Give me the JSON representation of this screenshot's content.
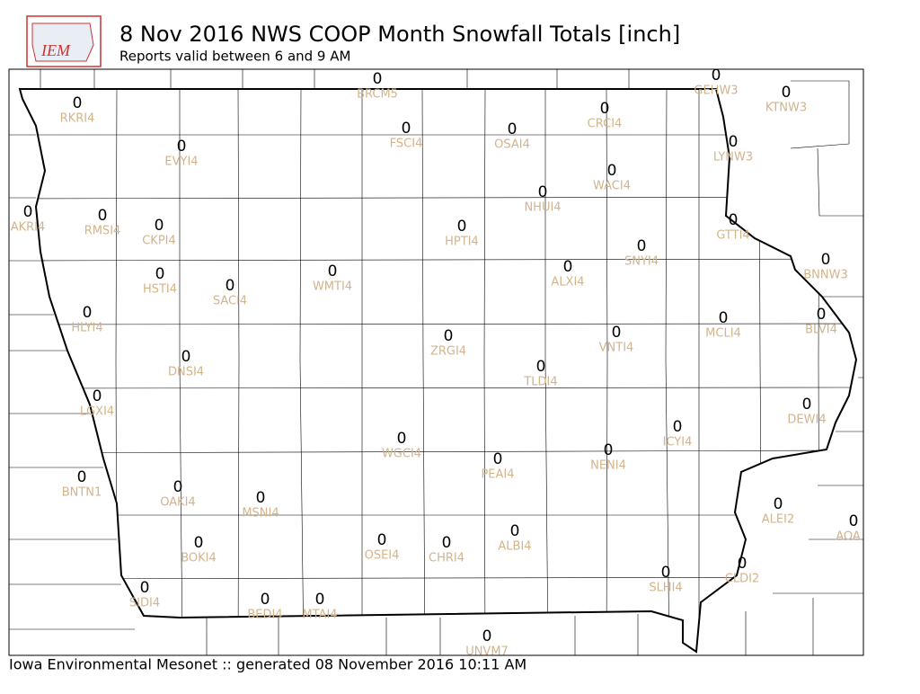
{
  "header": {
    "logo_text": "IEM",
    "title": "8 Nov 2016 NWS COOP Month Snowfall Totals [inch]",
    "subtitle": "Reports valid between 6 and 9 AM"
  },
  "footer": "Iowa Environmental Mesonet :: generated 08 November 2016 10:11 AM",
  "stations": [
    {
      "id": "BRCM5",
      "value": 0
    },
    {
      "id": "GEHW3",
      "value": 0
    },
    {
      "id": "KTNW3",
      "value": 0
    },
    {
      "id": "RKRI4",
      "value": 0
    },
    {
      "id": "CRCI4",
      "value": 0
    },
    {
      "id": "FSCI4",
      "value": 0
    },
    {
      "id": "OSAI4",
      "value": 0
    },
    {
      "id": "EVYI4",
      "value": 0
    },
    {
      "id": "LYNW3",
      "value": 0
    },
    {
      "id": "WACI4",
      "value": 0
    },
    {
      "id": "NHUI4",
      "value": 0
    },
    {
      "id": "AKRI4",
      "value": 0
    },
    {
      "id": "RMSI4",
      "value": 0
    },
    {
      "id": "CKPI4",
      "value": 0
    },
    {
      "id": "HPTI4",
      "value": 0
    },
    {
      "id": "GTTI4",
      "value": 0
    },
    {
      "id": "SNYI4",
      "value": 0
    },
    {
      "id": "BNNW3",
      "value": 0
    },
    {
      "id": "ALXI4",
      "value": 0
    },
    {
      "id": "HSTI4",
      "value": 0
    },
    {
      "id": "SACI4",
      "value": 0
    },
    {
      "id": "WMTI4",
      "value": 0
    },
    {
      "id": "HLYI4",
      "value": 0
    },
    {
      "id": "BLVI4",
      "value": 0
    },
    {
      "id": "MCLI4",
      "value": 0
    },
    {
      "id": "VNTI4",
      "value": 0
    },
    {
      "id": "ZRGI4",
      "value": 0
    },
    {
      "id": "DNSI4",
      "value": 0
    },
    {
      "id": "TLDI4",
      "value": 0
    },
    {
      "id": "LGXI4",
      "value": 0
    },
    {
      "id": "DEWI4",
      "value": 0
    },
    {
      "id": "ICYI4",
      "value": 0
    },
    {
      "id": "WGCI4",
      "value": 0
    },
    {
      "id": "NENI4",
      "value": 0
    },
    {
      "id": "PEAI4",
      "value": 0
    },
    {
      "id": "BNTN1",
      "value": 0
    },
    {
      "id": "OAKI4",
      "value": 0
    },
    {
      "id": "MSNI4",
      "value": 0
    },
    {
      "id": "ALEI2",
      "value": 0
    },
    {
      "id": "AOA",
      "value": 0
    },
    {
      "id": "ALBI4",
      "value": 0
    },
    {
      "id": "OSEI4",
      "value": 0
    },
    {
      "id": "CHRI4",
      "value": 0
    },
    {
      "id": "BOKI4",
      "value": 0
    },
    {
      "id": "CLDI2",
      "value": 0
    },
    {
      "id": "SLHI4",
      "value": 0
    },
    {
      "id": "SIDI4",
      "value": 0
    },
    {
      "id": "BEDI4",
      "value": 0
    },
    {
      "id": "MTAI4",
      "value": 0
    },
    {
      "id": "UNVM7",
      "value": 0
    }
  ]
}
